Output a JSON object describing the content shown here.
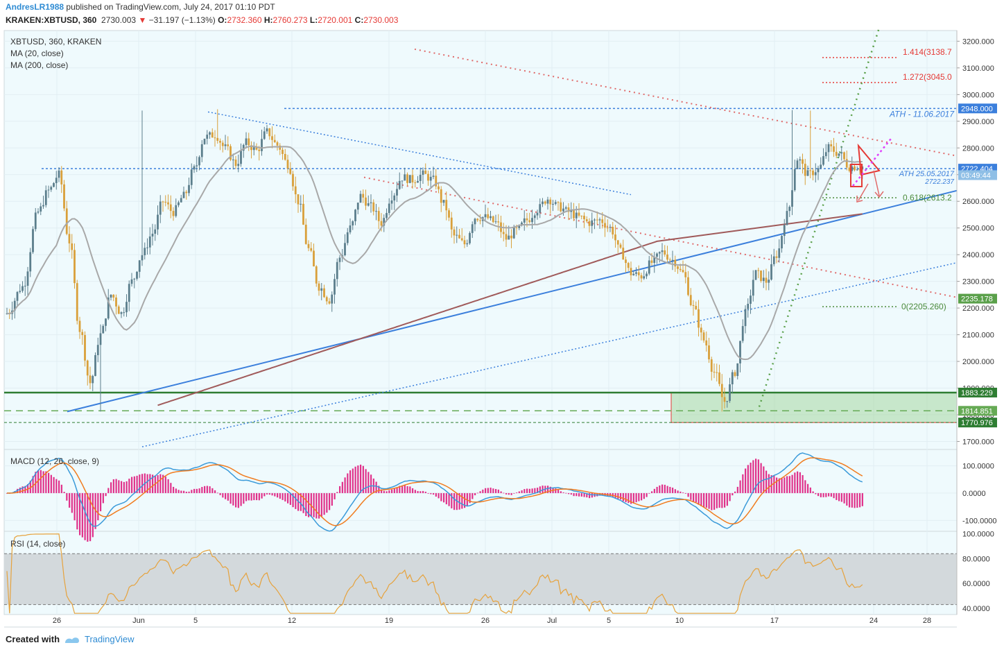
{
  "header": {
    "user": "AndresLR1988",
    "published": "published on TradingView.com, July 24, 2017 01:10 PDT",
    "symbol": "KRAKEN:XBTUSD, 360",
    "last": "2730.003",
    "change": "−31.197 (−1.13%)",
    "o_label": "O:",
    "o": "2732.360",
    "h_label": "H:",
    "h": "2760.273",
    "l_label": "L:",
    "l": "2720.001",
    "c_label": "C:",
    "c": "2730.003"
  },
  "legend": {
    "symbol": "XBTUSD, 360, KRAKEN",
    "ma20": "MA (20, close)",
    "ma200": "MA (200, close)",
    "macd": "MACD (12, 26, close, 9)",
    "rsi": "RSI (14, close)"
  },
  "footer": {
    "created": "Created with",
    "brand": "TradingView"
  },
  "colors": {
    "up": "#5b7e8c",
    "down": "#d9a03a",
    "ma20": "#a8a8a8",
    "ma200": "#a05a5a",
    "trend_blue": "#3b7fdc",
    "red_dotted": "#e06a6a",
    "green_dotted": "#5aa04a",
    "pane_bg": "#effafd",
    "macd_line": "#3a9ad9",
    "signal_line": "#f07c1f",
    "hist_neg": "#e0308a",
    "rsi": "#e6a23c"
  },
  "chart_data": [
    {
      "type": "candlestick",
      "title": "XBTUSD, 360, KRAKEN",
      "x_ticks": [
        "26",
        "Jun",
        "5",
        "12",
        "19",
        "26",
        "Jul",
        "5",
        "10",
        "17",
        "24",
        "28"
      ],
      "y_ticks": [
        1700,
        1800,
        1900,
        2000,
        2100,
        2200,
        2300,
        2400,
        2500,
        2600,
        2700,
        2800,
        2900,
        3000,
        3100,
        3200
      ],
      "y_tick_labels": [
        "1700.000",
        "1800.000",
        "1900.000",
        "2000.000",
        "2100.000",
        "2200.000",
        "2300.000",
        "2400.000",
        "2500.000",
        "2600.000",
        "2700.000",
        "2800.000",
        "2900.000",
        "3000.000",
        "3100.000",
        "3200.000"
      ],
      "ylim": [
        1670,
        3240
      ],
      "series": [
        {
          "name": "XBTUSD",
          "anchor_closes": [
            [
              0,
              2180
            ],
            [
              6,
              2280
            ],
            [
              12,
              2560
            ],
            [
              16,
              2640
            ],
            [
              20,
              2700
            ],
            [
              24,
              2450
            ],
            [
              28,
              2120
            ],
            [
              32,
              1920
            ],
            [
              36,
              2100
            ],
            [
              40,
              2250
            ],
            [
              44,
              2180
            ],
            [
              48,
              2300
            ],
            [
              52,
              2400
            ],
            [
              56,
              2480
            ],
            [
              60,
              2600
            ],
            [
              64,
              2560
            ],
            [
              68,
              2620
            ],
            [
              72,
              2720
            ],
            [
              76,
              2840
            ],
            [
              80,
              2850
            ],
            [
              84,
              2800
            ],
            [
              88,
              2740
            ],
            [
              92,
              2820
            ],
            [
              96,
              2790
            ],
            [
              100,
              2860
            ],
            [
              104,
              2810
            ],
            [
              108,
              2740
            ],
            [
              112,
              2600
            ],
            [
              116,
              2420
            ],
            [
              120,
              2280
            ],
            [
              124,
              2230
            ],
            [
              128,
              2390
            ],
            [
              132,
              2500
            ],
            [
              136,
              2620
            ],
            [
              140,
              2580
            ],
            [
              144,
              2520
            ],
            [
              148,
              2620
            ],
            [
              152,
              2690
            ],
            [
              156,
              2680
            ],
            [
              160,
              2700
            ],
            [
              164,
              2680
            ],
            [
              168,
              2590
            ],
            [
              172,
              2470
            ],
            [
              176,
              2440
            ],
            [
              180,
              2540
            ],
            [
              184,
              2540
            ],
            [
              188,
              2520
            ],
            [
              192,
              2460
            ],
            [
              196,
              2490
            ],
            [
              200,
              2530
            ],
            [
              204,
              2570
            ],
            [
              208,
              2610
            ],
            [
              212,
              2580
            ],
            [
              216,
              2560
            ],
            [
              220,
              2540
            ],
            [
              224,
              2520
            ],
            [
              228,
              2530
            ],
            [
              232,
              2500
            ],
            [
              236,
              2410
            ],
            [
              240,
              2330
            ],
            [
              244,
              2320
            ],
            [
              248,
              2370
            ],
            [
              252,
              2410
            ],
            [
              256,
              2380
            ],
            [
              260,
              2330
            ],
            [
              264,
              2200
            ],
            [
              268,
              2080
            ],
            [
              272,
              1960
            ],
            [
              276,
              1850
            ],
            [
              280,
              1960
            ],
            [
              284,
              2180
            ],
            [
              288,
              2330
            ],
            [
              292,
              2300
            ],
            [
              296,
              2400
            ],
            [
              300,
              2550
            ],
            [
              304,
              2760
            ],
            [
              308,
              2700
            ],
            [
              312,
              2720
            ],
            [
              316,
              2800
            ],
            [
              320,
              2780
            ],
            [
              324,
              2730
            ],
            [
              328,
              2730
            ]
          ]
        },
        {
          "name": "MA (20, close)"
        },
        {
          "name": "MA (200, close)"
        }
      ],
      "price_labels": [
        {
          "value": 2948,
          "text": "2948.000",
          "bg": "#3b7fdc"
        },
        {
          "value": 2722.404,
          "text": "2722.404",
          "bg": "#3b7fdc"
        },
        {
          "value": 2698,
          "text": "03:49:44",
          "bg": "#8fbfe6"
        },
        {
          "value": 2235.178,
          "text": "2235.178",
          "bg": "#5aa04a"
        },
        {
          "value": 1883.229,
          "text": "1883.229",
          "bg": "#2e7d32"
        },
        {
          "value": 1814.851,
          "text": "1814.851",
          "bg": "#66aa55"
        },
        {
          "value": 1770.976,
          "text": "1770.976",
          "bg": "#2e7d32"
        }
      ],
      "annotations": [
        {
          "text": "ATH - 11.06.2017",
          "value": 2948,
          "color": "#3b7fdc"
        },
        {
          "text": "ATH 25.05.2017",
          "value": 2722.237,
          "color": "#3b7fdc"
        },
        {
          "text": "2722.237",
          "value": 2722.237,
          "color": "#3b7fdc"
        },
        {
          "text": "1.414(3138.7",
          "value": 3138.7,
          "color": "#e53935"
        },
        {
          "text": "1.272(3045.0",
          "value": 3045.0,
          "color": "#e53935"
        },
        {
          "text": "0.618(2613.2",
          "value": 2613.2,
          "color": "#4a8a3a"
        },
        {
          "text": "0(2205.260)",
          "value": 2205.26,
          "color": "#4a8a3a"
        }
      ]
    },
    {
      "type": "line",
      "title": "MACD (12, 26, close, 9)",
      "y_ticks": [
        100,
        0,
        -100
      ],
      "y_tick_labels": [
        "100.0000",
        "0.0000",
        "-100.0000"
      ],
      "ylim": [
        -140,
        160
      ]
    },
    {
      "type": "line",
      "title": "RSI (14, close)",
      "y_ticks": [
        100,
        80,
        60,
        40
      ],
      "y_tick_labels": [
        "100.0000",
        "80.0000",
        "60.0000",
        "40.0000"
      ],
      "ylim": [
        35,
        102
      ],
      "band": [
        43,
        84
      ]
    }
  ]
}
